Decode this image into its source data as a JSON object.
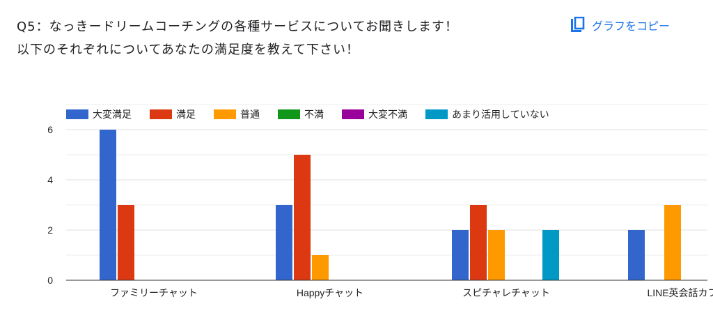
{
  "question": {
    "line1": "Q5：なっきードリームコーチングの各種サービスについてお聞きします！",
    "line2": "以下のそれぞれについてあなたの満足度を教えて下さい！"
  },
  "copy_button": {
    "label": "グラフをコピー",
    "icon": "copy-icon"
  },
  "colors": {
    "series": [
      "#3366cc",
      "#dc3912",
      "#ff9900",
      "#109618",
      "#990099",
      "#0099c6"
    ],
    "gridline": "#e0e0e0",
    "axis": "#333333",
    "text": "#222222"
  },
  "chart_data": {
    "type": "bar",
    "categories": [
      "ファミリーチャット",
      "Happyチャット",
      "スピチャレチャット",
      "LINE英会話カフ"
    ],
    "series": [
      {
        "name": "大変満足",
        "values": [
          6,
          3,
          2,
          2
        ]
      },
      {
        "name": "満足",
        "values": [
          3,
          5,
          3,
          0
        ]
      },
      {
        "name": "普通",
        "values": [
          0,
          1,
          2,
          3
        ]
      },
      {
        "name": "不満",
        "values": [
          0,
          0,
          0,
          0
        ]
      },
      {
        "name": "大変不満",
        "values": [
          0,
          0,
          0,
          0
        ]
      },
      {
        "name": "あまり活用していない",
        "values": [
          0,
          0,
          2,
          0
        ]
      }
    ],
    "ylim": [
      0,
      7
    ],
    "yticks": [
      0,
      2,
      4,
      6
    ],
    "minor_gridlines": [
      1,
      3,
      5,
      7
    ],
    "legend_position": "top",
    "xlabel": "",
    "ylabel": ""
  }
}
